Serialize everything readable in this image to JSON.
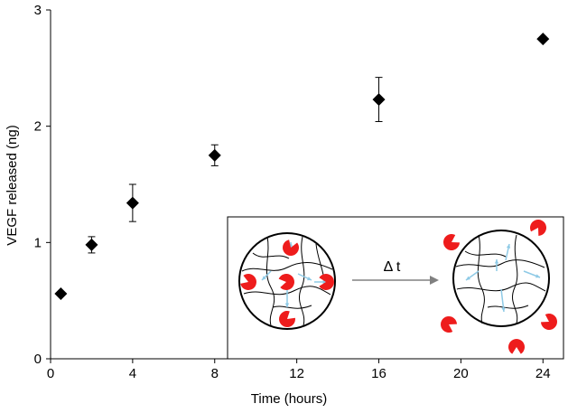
{
  "chart_data": {
    "type": "scatter",
    "xlabel": "Time (hours)",
    "ylabel": "VEGF released (ng)",
    "xlim": [
      0,
      25
    ],
    "ylim": [
      0,
      3
    ],
    "xticks": [
      0,
      4,
      8,
      12,
      16,
      20,
      24
    ],
    "yticks": [
      0,
      1,
      2,
      3
    ],
    "grid": false,
    "marker": "diamond",
    "marker_color": "#000000",
    "series": [
      {
        "x": [
          0.5,
          2,
          4,
          8,
          16,
          24
        ],
        "y": [
          0.56,
          0.98,
          1.34,
          1.75,
          2.23,
          2.75
        ],
        "error": [
          0,
          0.07,
          0.16,
          0.09,
          0.19,
          0
        ]
      }
    ],
    "inset": {
      "label": "Δ t",
      "circle_stroke": "#000000",
      "molecule_color": "#ee1c1c",
      "arrow_color": "#8ecae6"
    }
  }
}
